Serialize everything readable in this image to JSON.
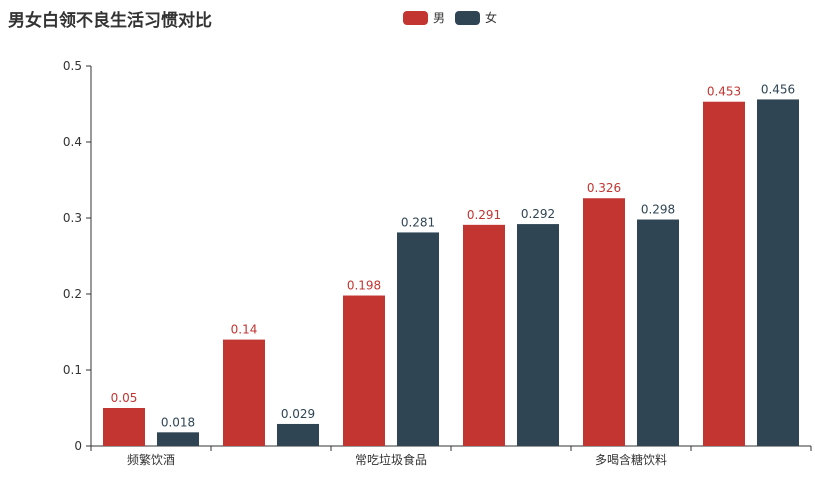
{
  "chart_data": {
    "type": "bar",
    "title": "男女白领不良生活习惯对比",
    "categories": [
      "频繁饮酒",
      "",
      "常吃垃圾食品",
      "",
      "多喝含糖饮料",
      ""
    ],
    "series": [
      {
        "name": "男",
        "color": "#c23531",
        "values": [
          0.05,
          0.14,
          0.198,
          0.291,
          0.326,
          0.453
        ],
        "labels": [
          "0.05",
          "0.14",
          "0.198",
          "0.291",
          "0.326",
          "0.453"
        ]
      },
      {
        "name": "女",
        "color": "#2f4554",
        "values": [
          0.018,
          0.029,
          0.281,
          0.292,
          0.298,
          0.456
        ],
        "labels": [
          "0.018",
          "0.029",
          "0.281",
          "0.292",
          "0.298",
          "0.456"
        ]
      }
    ],
    "ylim": [
      0,
      0.5
    ],
    "yticks": [
      "0",
      "0.1",
      "0.2",
      "0.3",
      "0.4",
      "0.5"
    ],
    "legend_position": "top",
    "grid": false
  }
}
